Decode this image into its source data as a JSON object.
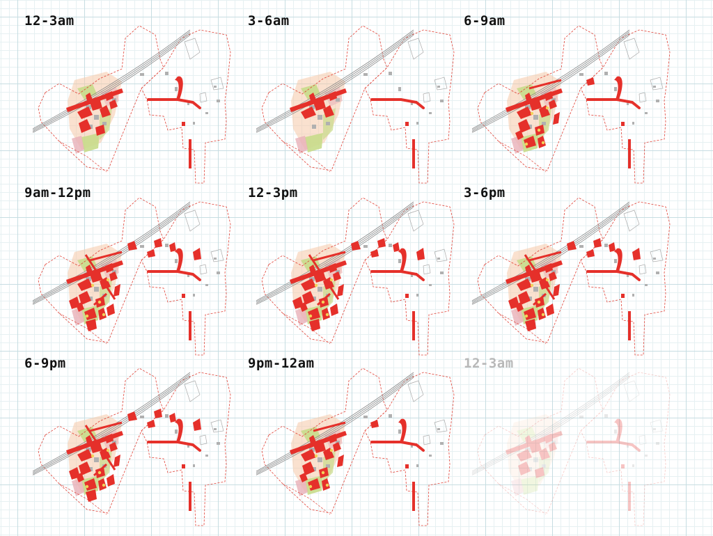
{
  "panels": [
    {
      "label": "12-3am",
      "level": 1,
      "faded": false
    },
    {
      "label": "3-6am",
      "level": 0,
      "faded": false
    },
    {
      "label": "6-9am",
      "level": 2,
      "faded": false
    },
    {
      "label": "9am-12pm",
      "level": 3,
      "faded": false
    },
    {
      "label": "12-3pm",
      "level": 3,
      "faded": false
    },
    {
      "label": "3-6pm",
      "level": 3,
      "faded": false
    },
    {
      "label": "6-9pm",
      "level": 3,
      "faded": false
    },
    {
      "label": "9pm-12am",
      "level": 2,
      "faded": false
    },
    {
      "label": "12-3am",
      "level": 1,
      "faded": true
    }
  ],
  "colors": {
    "activity": "#e5302a",
    "boundary": "#e04035",
    "rail": "#8a8a8a",
    "building": "#b0b0b0",
    "land_peach": "#f5c8a8",
    "land_green": "#c8dc8a",
    "land_pink": "#e8b0b8",
    "yellow": "#f2d25a"
  }
}
